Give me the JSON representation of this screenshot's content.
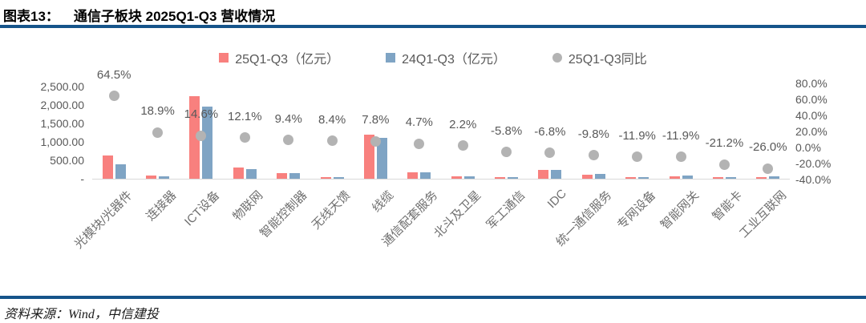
{
  "figure": {
    "label": "图表13：",
    "title": "通信子板块 2025Q1-Q3 营收情况",
    "source": "资料来源：Wind，中信建投"
  },
  "colors": {
    "series_2025": "#F8807E",
    "series_2024": "#7FA4C4",
    "yoy_dot": "#B3B3B3",
    "rule_blue": "#15548A",
    "axis_text": "#595959",
    "axis_line": "#D9D9D9"
  },
  "legend": [
    {
      "label": "25Q1-Q3（亿元）",
      "marker": "square",
      "color": "#F8807E"
    },
    {
      "label": "24Q1-Q3（亿元）",
      "marker": "square",
      "color": "#7FA4C4"
    },
    {
      "label": "25Q1-Q3同比",
      "marker": "circle",
      "color": "#B3B3B3"
    }
  ],
  "chart_data": {
    "type": "bar",
    "overlay": "scatter",
    "title": "通信子板块 2025Q1-Q3 营收情况",
    "categories": [
      "光模块/光器件",
      "连接器",
      "ICT设备",
      "物联网",
      "智能控制器",
      "无线天馈",
      "线缆",
      "通信配套服务",
      "北斗及卫星",
      "军工通信",
      "IDC",
      "统一通信服务",
      "专网设备",
      "智能网关",
      "智能卡",
      "工业互联网"
    ],
    "series": [
      {
        "name": "25Q1-Q3（亿元）",
        "type": "bar",
        "axis": "left",
        "color": "#F8807E",
        "values": [
          630,
          90,
          2240,
          300,
          160,
          40,
          1200,
          180,
          65,
          45,
          230,
          120,
          45,
          70,
          20,
          55
        ]
      },
      {
        "name": "24Q1-Q3（亿元）",
        "type": "bar",
        "axis": "left",
        "color": "#7FA4C4",
        "values": [
          383,
          76,
          1955,
          268,
          146,
          37,
          1113,
          172,
          64,
          48,
          247,
          133,
          51,
          79,
          25,
          74
        ]
      },
      {
        "name": "25Q1-Q3同比",
        "type": "scatter",
        "axis": "right",
        "color": "#B3B3B3",
        "values": [
          64.5,
          18.9,
          14.6,
          12.1,
          9.4,
          8.4,
          7.8,
          4.7,
          2.2,
          -5.8,
          -6.8,
          -9.8,
          -11.9,
          -11.9,
          -21.2,
          -26.0
        ],
        "labels": [
          "64.5%",
          "18.9%",
          "14.6%",
          "12.1%",
          "9.4%",
          "8.4%",
          "7.8%",
          "4.7%",
          "2.2%",
          "-5.8%",
          "-6.8%",
          "-9.8%",
          "-11.9%",
          "-11.9%",
          "-21.2%",
          "-26.0%"
        ]
      }
    ],
    "left_axis": {
      "ticks": [
        "2,500.00",
        "2,000.00",
        "1,500.00",
        "1,000.00",
        "500.00",
        "-"
      ],
      "range": [
        0,
        2500
      ]
    },
    "right_axis": {
      "ticks": [
        "80.0%",
        "60.0%",
        "40.0%",
        "20.0%",
        "0.0%",
        "-20.0%",
        "-40.0%"
      ],
      "range": [
        -40,
        80
      ]
    },
    "grid": false,
    "legend_position": "top",
    "note": "bar values in 亿元 estimated from axis gridlines; dot series read from printed data labels"
  }
}
